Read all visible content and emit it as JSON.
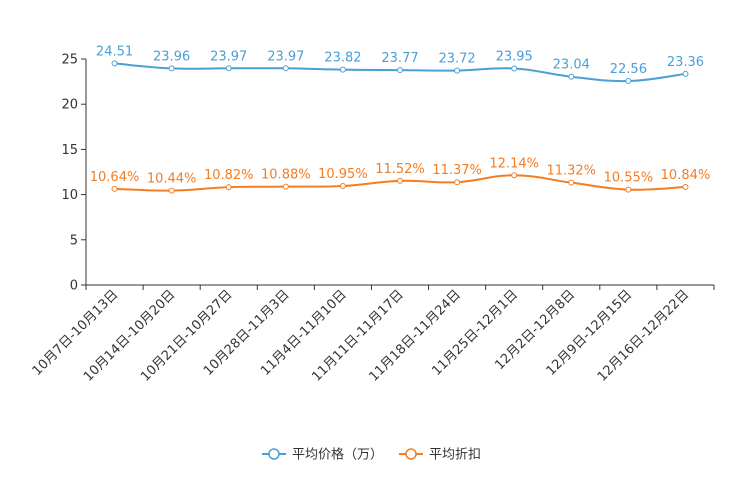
{
  "chart_data": {
    "type": "line",
    "categories": [
      "10月7日-10月13日",
      "10月14日-10月20日",
      "10月21日-10月27日",
      "10月28日-11月3日",
      "11月4日-11月10日",
      "11月11日-11月17日",
      "11月18日-11月24日",
      "11月25日-12月1日",
      "12月2日-12月8日",
      "12月9日-12月15日",
      "12月16日-12月22日"
    ],
    "ylim": [
      0,
      25
    ],
    "yticks": [
      0,
      5,
      10,
      15,
      20,
      25
    ],
    "grid": false,
    "legend_position": "bottom-center",
    "series": [
      {
        "name": "平均价格（万）",
        "color": "#4a9fd5",
        "values": [
          24.51,
          23.96,
          23.97,
          23.97,
          23.82,
          23.77,
          23.72,
          23.95,
          23.04,
          22.56,
          23.36
        ],
        "labels": [
          "24.51",
          "23.96",
          "23.97",
          "23.97",
          "23.82",
          "23.77",
          "23.72",
          "23.95",
          "23.04",
          "22.56",
          "23.36"
        ]
      },
      {
        "name": "平均折扣",
        "color": "#f57c1f",
        "values": [
          10.64,
          10.44,
          10.82,
          10.88,
          10.95,
          11.52,
          11.37,
          12.14,
          11.32,
          10.55,
          10.84
        ],
        "labels": [
          "10.64%",
          "10.44%",
          "10.82%",
          "10.88%",
          "10.95%",
          "11.52%",
          "11.37%",
          "12.14%",
          "11.32%",
          "10.55%",
          "10.84%"
        ]
      }
    ]
  }
}
